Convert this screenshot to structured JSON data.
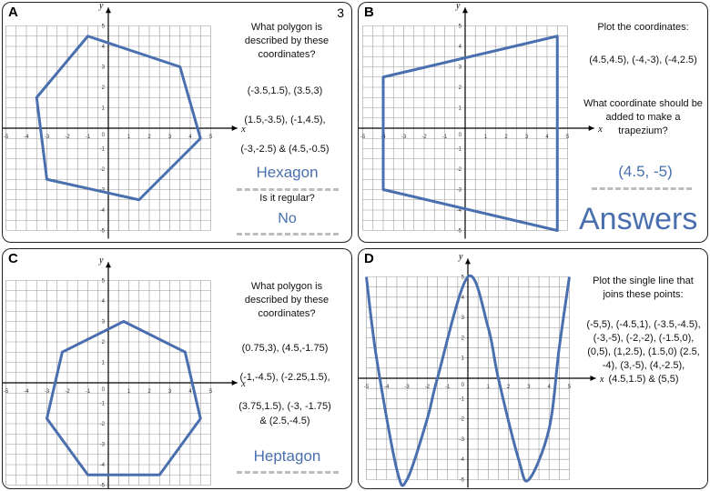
{
  "panels": {
    "A": {
      "label": "A",
      "number": "3",
      "question": "What polygon is described by these coordinates?",
      "coords_line1": "(-3.5,1.5),  (3.5,3)",
      "coords_line2": "(1.5,-3.5), (-1,4.5),",
      "coords_line3": "(-3,-2.5)  &  (4.5,-0.5)",
      "answer": "Hexagon",
      "subquestion": "Is it regular?",
      "subanswer": "No",
      "polygon": [
        [
          -1,
          4.5
        ],
        [
          3.5,
          3
        ],
        [
          4.5,
          -0.5
        ],
        [
          1.5,
          -3.5
        ],
        [
          -3,
          -2.5
        ],
        [
          -3.5,
          1.5
        ]
      ]
    },
    "B": {
      "label": "B",
      "question": "Plot the coordinates:",
      "coords": "(4.5,4.5), (-4,-3), (-4,2.5)",
      "question2": "What coordinate should be added to make a trapezium?",
      "answer": "(4.5, -5)",
      "polygon": [
        [
          4.5,
          4.5
        ],
        [
          4.5,
          -5
        ],
        [
          -4,
          -3
        ],
        [
          -4,
          2.5
        ]
      ]
    },
    "C": {
      "label": "C",
      "question": "What polygon is described by these coordinates?",
      "coords_line1": "(0.75,3),  (4.5,-1.75)",
      "coords_line2": "(-1,-4.5), (-2.25,1.5),",
      "coords_line3": "(3.75,1.5), (-3, -1.75)",
      "coords_line4": "&  (2.5,-4.5)",
      "answer": "Heptagon",
      "polygon": [
        [
          0.75,
          3
        ],
        [
          3.75,
          1.5
        ],
        [
          4.5,
          -1.75
        ],
        [
          2.5,
          -4.5
        ],
        [
          -1,
          -4.5
        ],
        [
          -3,
          -1.75
        ],
        [
          -2.25,
          1.5
        ]
      ]
    },
    "D": {
      "label": "D",
      "question": "Plot the single line that joins these points:",
      "points_text": "(-5,5), (-4.5,1), (-3.5,-4.5), (-3,-5), (-2,-2), (-1.5,0), (0,5), (1,2.5), (1.5,0) (2.5, -4), (3,-5), (4,-2.5), (4.5,1.5) & (5,5)",
      "points": [
        [
          -5,
          5
        ],
        [
          -4.5,
          1
        ],
        [
          -3.5,
          -4.5
        ],
        [
          -3,
          -5
        ],
        [
          -2,
          -2
        ],
        [
          -1.5,
          0
        ],
        [
          0,
          5
        ],
        [
          1,
          2.5
        ],
        [
          1.5,
          0
        ],
        [
          2.5,
          -4
        ],
        [
          3,
          -5
        ],
        [
          4,
          -2.5
        ],
        [
          4.5,
          1.5
        ],
        [
          5,
          5
        ]
      ]
    }
  },
  "answers_title": "Answers",
  "axes": {
    "x_label": "x",
    "y_label": "y",
    "range": [
      -5,
      5
    ]
  },
  "colors": {
    "shape": "#4a6fae",
    "grid": "#9a9a9a",
    "axis": "#000000"
  }
}
